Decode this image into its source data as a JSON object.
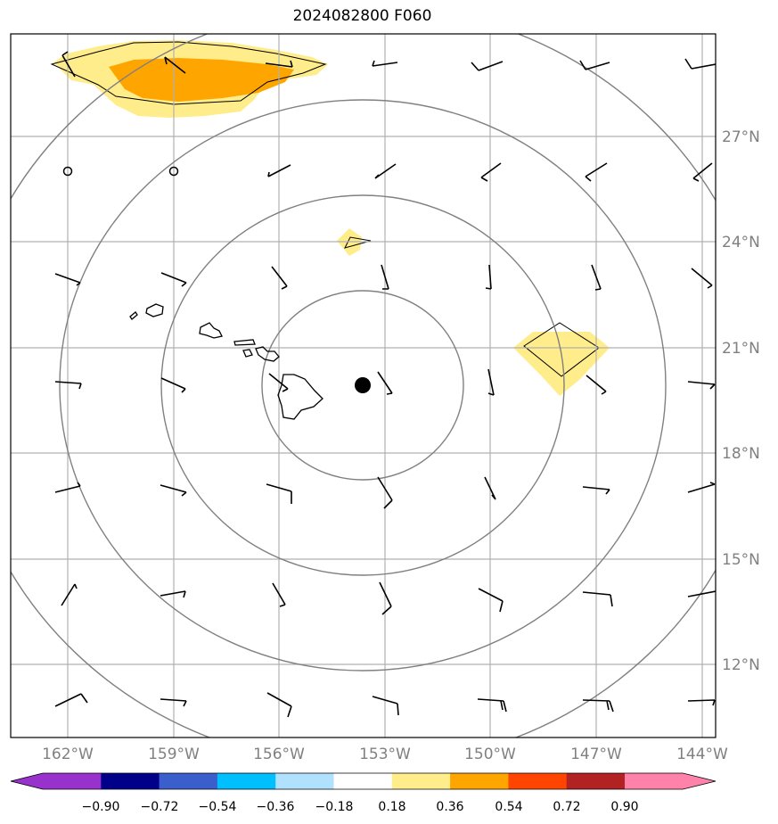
{
  "title": "2024082800 F060",
  "lon_labels": [
    "162°W",
    "159°W",
    "156°W",
    "153°W",
    "150°W",
    "147°W",
    "144°W"
  ],
  "lat_labels": [
    "27°N",
    "24°N",
    "21°N",
    "18°N",
    "15°N",
    "12°N"
  ],
  "colorbar": {
    "tick_labels": [
      "−0.90",
      "−0.72",
      "−0.54",
      "−0.36",
      "−0.18",
      "0.18",
      "0.36",
      "0.54",
      "0.72",
      "0.90"
    ],
    "colors": [
      "#9932cc",
      "#00008b",
      "#3a5fcd",
      "#00bfff",
      "#b0e2ff",
      "#ffffff",
      "#ffec8b",
      "#ffa500",
      "#ff4500",
      "#b22222",
      "#ff82ab"
    ]
  },
  "colors": {
    "light_yellow": "#ffec8b",
    "orange": "#ffa500",
    "grid": "#b0b0b0",
    "contour": "#808080"
  }
}
